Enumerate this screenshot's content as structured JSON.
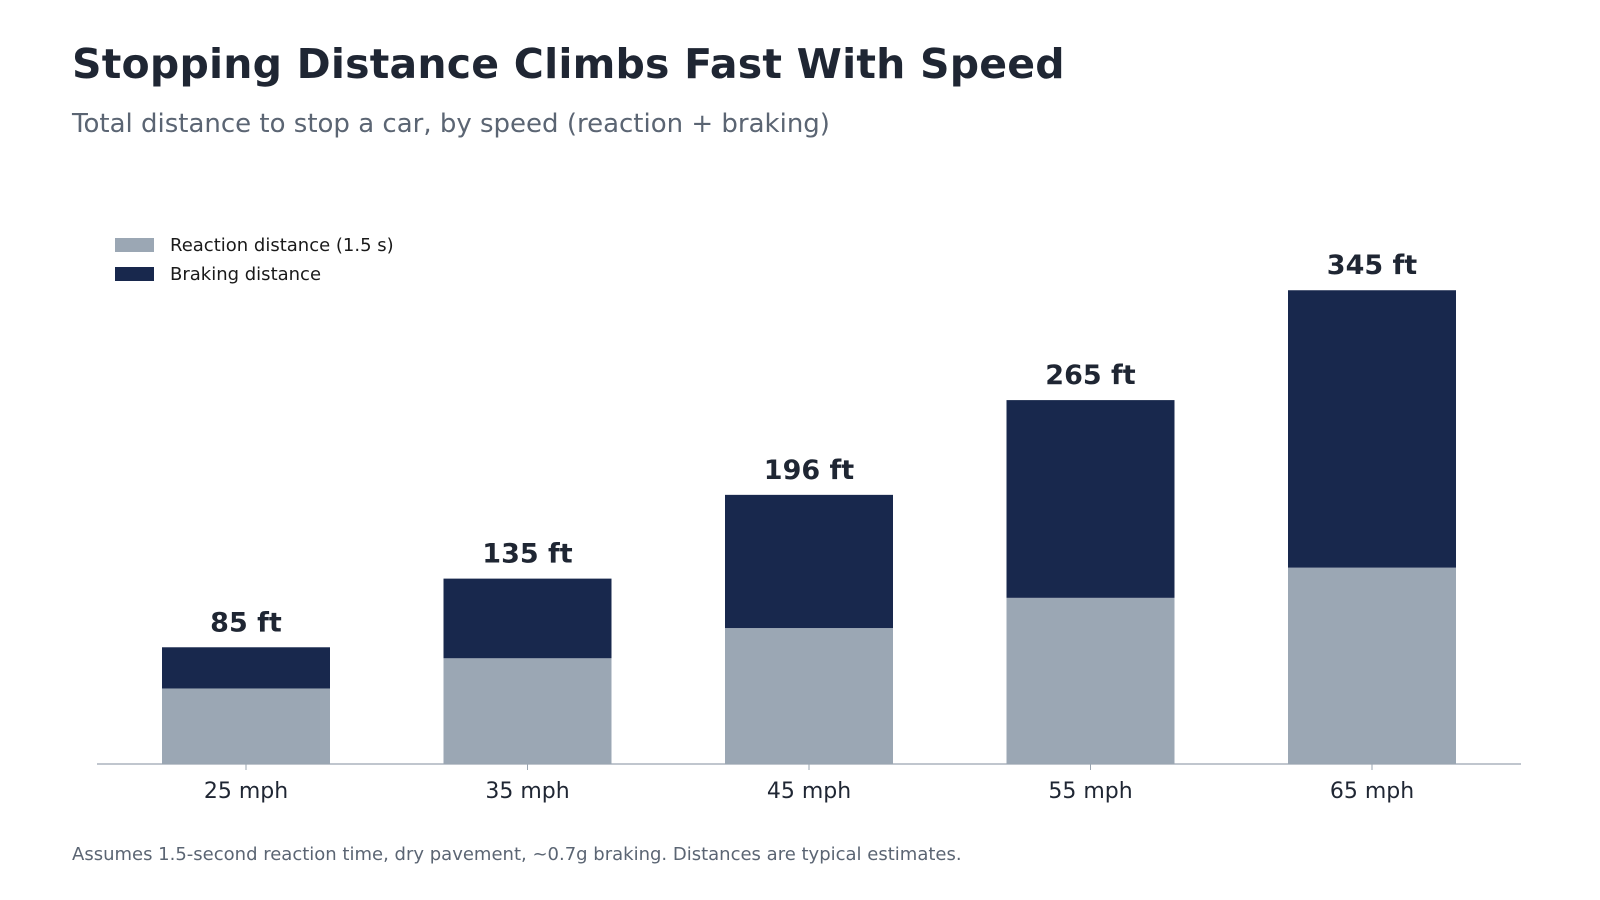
{
  "header": {
    "title": "Stopping Distance Climbs Fast With Speed",
    "subtitle": "Total distance to stop a car, by speed (reaction + braking)"
  },
  "footnote": "Assumes 1.5-second reaction time, dry pavement, ~0.7g braking. Distances are typical estimates.",
  "chart_data": {
    "type": "bar",
    "stacked": true,
    "categories": [
      "25 mph",
      "35 mph",
      "45 mph",
      "55 mph",
      "65 mph"
    ],
    "series": [
      {
        "name": "Reaction distance (1.5 s)",
        "values": [
          55,
          77,
          99,
          121,
          143
        ],
        "color": "#9ba7b4"
      },
      {
        "name": "Braking distance",
        "values": [
          30,
          58,
          97,
          144,
          202
        ],
        "color": "#18284d"
      }
    ],
    "totals": [
      85,
      135,
      196,
      265,
      345
    ],
    "total_labels": [
      "85 ft",
      "135 ft",
      "196 ft",
      "265 ft",
      "345 ft"
    ],
    "ylim": [
      0,
      370
    ],
    "legend_position": "top-left",
    "grid": false,
    "axis_color": "#9aa5b1"
  }
}
